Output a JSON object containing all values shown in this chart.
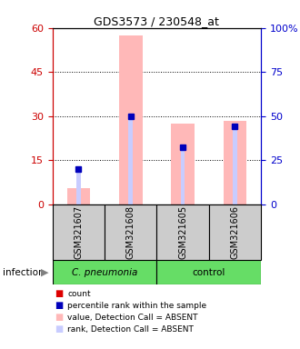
{
  "title": "GDS3573 / 230548_at",
  "samples": [
    "GSM321607",
    "GSM321608",
    "GSM321605",
    "GSM321606"
  ],
  "bar_color_absent": "#ffb8b8",
  "rank_color_absent": "#c8ccff",
  "dot_color_count": "#dd0000",
  "dot_color_rank": "#0000bb",
  "ylim_left": [
    0,
    60
  ],
  "ylim_right": [
    0,
    100
  ],
  "yticks_left": [
    0,
    15,
    30,
    45,
    60
  ],
  "yticks_right": [
    0,
    25,
    50,
    75,
    100
  ],
  "yticklabels_right": [
    "0",
    "25",
    "50",
    "75",
    "100%"
  ],
  "values_absent": [
    5.5,
    57.5,
    27.5,
    28.5
  ],
  "ranks_absent": [
    12.0,
    30.0,
    19.5,
    26.5
  ],
  "rank_dots": [
    12.0,
    30.0,
    19.5,
    26.5
  ],
  "left_axis_color": "#cc0000",
  "right_axis_color": "#0000cc",
  "legend_items": [
    {
      "label": "count",
      "color": "#dd0000"
    },
    {
      "label": "percentile rank within the sample",
      "color": "#0000bb"
    },
    {
      "label": "value, Detection Call = ABSENT",
      "color": "#ffb8b8"
    },
    {
      "label": "rank, Detection Call = ABSENT",
      "color": "#c8ccff"
    }
  ],
  "infection_label": "infection",
  "cpneumonia_color": "#66dd66",
  "control_color": "#66dd66",
  "sample_box_color": "#cccccc"
}
